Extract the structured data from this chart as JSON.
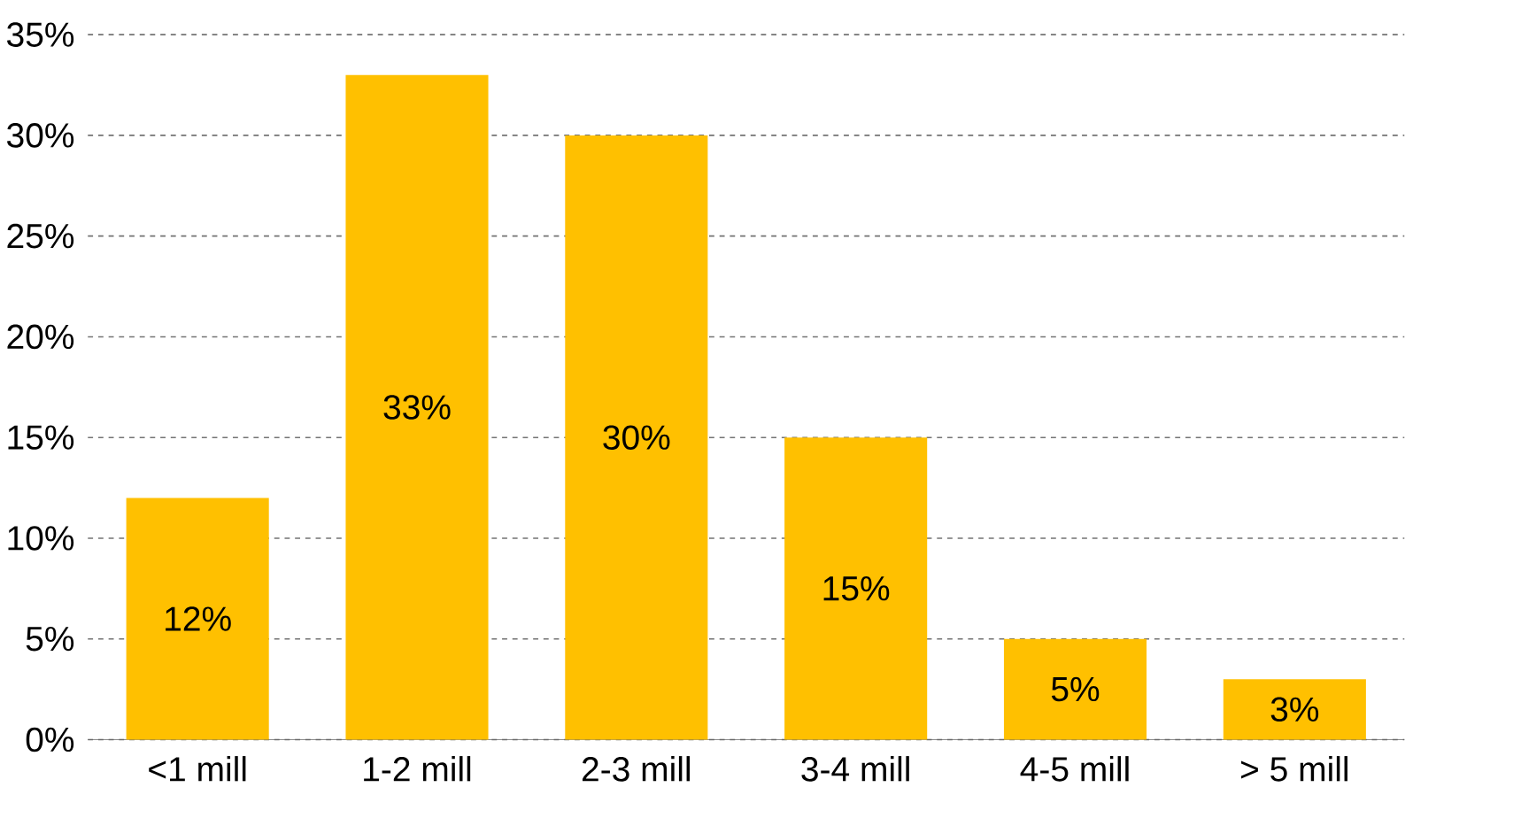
{
  "chart_data": {
    "type": "bar",
    "categories": [
      "<1 mill",
      "1-2 mill",
      "2-3 mill",
      "3-4 mill",
      "4-5 mill",
      "> 5 mill"
    ],
    "values": [
      12,
      33,
      30,
      15,
      5,
      3
    ],
    "value_labels": [
      "12%",
      "33%",
      "30%",
      "15%",
      "5%",
      "3%"
    ],
    "color": "#ffc000",
    "ylim": [
      0,
      35
    ],
    "yticks": [
      {
        "value": 0,
        "label": "0%"
      },
      {
        "value": 5,
        "label": "5%"
      },
      {
        "value": 10,
        "label": "10%"
      },
      {
        "value": 15,
        "label": "15%"
      },
      {
        "value": 20,
        "label": "20%"
      },
      {
        "value": 25,
        "label": "25%"
      },
      {
        "value": 30,
        "label": "30%"
      },
      {
        "value": 35,
        "label": "35%"
      }
    ],
    "grid": "y"
  }
}
